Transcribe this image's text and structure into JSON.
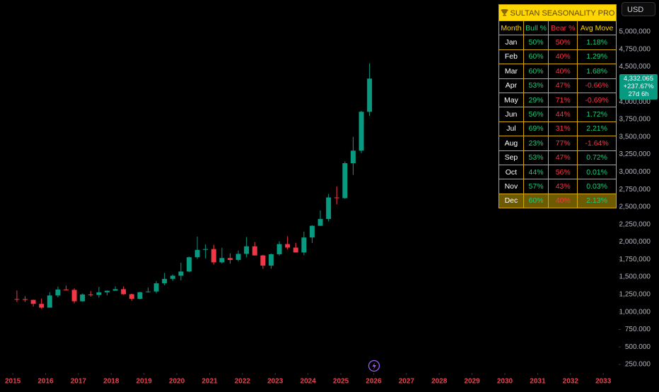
{
  "chart_data": {
    "type": "candlestick",
    "up_color": "#089981",
    "down_color": "#f23645",
    "x": [
      2015.125,
      2015.375,
      2015.625,
      2015.875,
      2016.125,
      2016.375,
      2016.625,
      2016.875,
      2017.125,
      2017.375,
      2017.625,
      2017.875,
      2018.125,
      2018.375,
      2018.625,
      2018.875,
      2019.125,
      2019.375,
      2019.625,
      2019.875,
      2020.125,
      2020.375,
      2020.625,
      2020.875,
      2021.125,
      2021.375,
      2021.625,
      2021.875,
      2022.125,
      2022.375,
      2022.625,
      2022.875,
      2023.125,
      2023.375,
      2023.625,
      2023.875,
      2024.125,
      2024.375,
      2024.625,
      2024.875,
      2025.125,
      2025.375,
      2025.625,
      2025.875
    ],
    "open": [
      1184000,
      1183000,
      1172000,
      1115000,
      1061000,
      1235000,
      1320000,
      1315000,
      1152000,
      1249000,
      1242000,
      1280000,
      1303000,
      1325000,
      1253000,
      1187000,
      1282000,
      1292000,
      1409000,
      1472000,
      1517000,
      1577000,
      1781000,
      1886000,
      1898000,
      1708000,
      1770000,
      1743000,
      1829000,
      1937000,
      1807000,
      1661000,
      1824000,
      1969000,
      1919000,
      1849000,
      2063000,
      2230000,
      2327000,
      2635000,
      2625000,
      3124000,
      3303000,
      3858000
    ],
    "high": [
      1307000,
      1224000,
      1175000,
      1191000,
      1283000,
      1362000,
      1375000,
      1337000,
      1264000,
      1296000,
      1357000,
      1306000,
      1366000,
      1365000,
      1261000,
      1287000,
      1347000,
      1439000,
      1557000,
      1535000,
      1703000,
      1789000,
      2075000,
      1965000,
      1959000,
      1916000,
      1834000,
      1877000,
      2070000,
      1998000,
      1814000,
      1833000,
      2009000,
      2081000,
      1987000,
      2146000,
      2236000,
      2450000,
      2685000,
      2790000,
      3148000,
      3500000,
      3871000,
      4550000
    ],
    "low": [
      1142000,
      1142000,
      1077000,
      1046000,
      1062000,
      1208000,
      1306000,
      1123000,
      1146000,
      1219000,
      1205000,
      1236000,
      1302000,
      1246000,
      1160000,
      1182000,
      1276000,
      1266000,
      1381000,
      1445000,
      1451000,
      1568000,
      1757000,
      1765000,
      1677000,
      1690000,
      1690000,
      1721000,
      1780000,
      1805000,
      1615000,
      1617000,
      1804000,
      1893000,
      1848000,
      1810000,
      1984000,
      2228000,
      2293000,
      2536000,
      2615000,
      2957000,
      3268000,
      3800000
    ],
    "close": [
      1183000,
      1172000,
      1115000,
      1061000,
      1235000,
      1320000,
      1315000,
      1152000,
      1249000,
      1242000,
      1280000,
      1303000,
      1325000,
      1253000,
      1187000,
      1282000,
      1292000,
      1409000,
      1472000,
      1517000,
      1577000,
      1781000,
      1886000,
      1898000,
      1708000,
      1770000,
      1743000,
      1829000,
      1937000,
      1807000,
      1661000,
      1824000,
      1969000,
      1919000,
      1849000,
      2063000,
      2230000,
      2327000,
      2635000,
      2625000,
      3124000,
      3303000,
      3858000,
      4332065
    ],
    "xlim": [
      2014.61,
      2033.47
    ],
    "xticks": [
      2015,
      2016,
      2017,
      2018,
      2019,
      2020,
      2021,
      2022,
      2023,
      2024,
      2025,
      2026,
      2027,
      2028,
      2029,
      2030,
      2031,
      2032,
      2033
    ],
    "ylim": [
      129000,
      5454000
    ],
    "yticks": [
      {
        "value": 250000,
        "label": "250.000"
      },
      {
        "value": 500000,
        "label": "500.000"
      },
      {
        "value": 750000,
        "label": "750.000"
      },
      {
        "value": 1000000,
        "label": "1,000,000"
      },
      {
        "value": 1250000,
        "label": "1,250,000"
      },
      {
        "value": 1500000,
        "label": "1,500,000"
      },
      {
        "value": 1750000,
        "label": "1,750,000"
      },
      {
        "value": 2000000,
        "label": "2,000,000"
      },
      {
        "value": 2250000,
        "label": "2,250,000"
      },
      {
        "value": 2500000,
        "label": "2,500,000"
      },
      {
        "value": 2750000,
        "label": "2,750,000"
      },
      {
        "value": 3000000,
        "label": "3,000,000"
      },
      {
        "value": 3250000,
        "label": "3,250,000"
      },
      {
        "value": 3500000,
        "label": "3,500,000"
      },
      {
        "value": 3750000,
        "label": "3,750,000"
      },
      {
        "value": 4000000,
        "label": "4,000,000"
      },
      {
        "value": 4500000,
        "label": "4,500,000"
      },
      {
        "value": 4750000,
        "label": "4,750,000"
      },
      {
        "value": 5000000,
        "label": "5,000,000"
      }
    ],
    "last_price": {
      "label": "4,332.065",
      "change": "+237.67%",
      "countdown": "27d 6h"
    }
  },
  "currency": "USD",
  "table": {
    "title": "SULTAN SEASONALITY PRO",
    "columns": [
      "Month",
      "Bull %",
      "Bear %",
      "Avg Move"
    ],
    "rows": [
      [
        "Jan",
        "50%",
        "50%",
        "1.18%"
      ],
      [
        "Feb",
        "60%",
        "40%",
        "1.29%"
      ],
      [
        "Mar",
        "60%",
        "40%",
        "1.68%"
      ],
      [
        "Apr",
        "53%",
        "47%",
        "-0.66%"
      ],
      [
        "May",
        "29%",
        "71%",
        "-0.69%"
      ],
      [
        "Jun",
        "56%",
        "44%",
        "1.72%"
      ],
      [
        "Jul",
        "69%",
        "31%",
        "2.21%"
      ],
      [
        "Aug",
        "23%",
        "77%",
        "-1.64%"
      ],
      [
        "Sep",
        "53%",
        "47%",
        "0.72%"
      ],
      [
        "Oct",
        "44%",
        "56%",
        "0.01%"
      ],
      [
        "Nov",
        "57%",
        "43%",
        "0.03%"
      ],
      [
        "Dec",
        "60%",
        "40%",
        "2.13%"
      ]
    ],
    "highlight_row": 11
  }
}
